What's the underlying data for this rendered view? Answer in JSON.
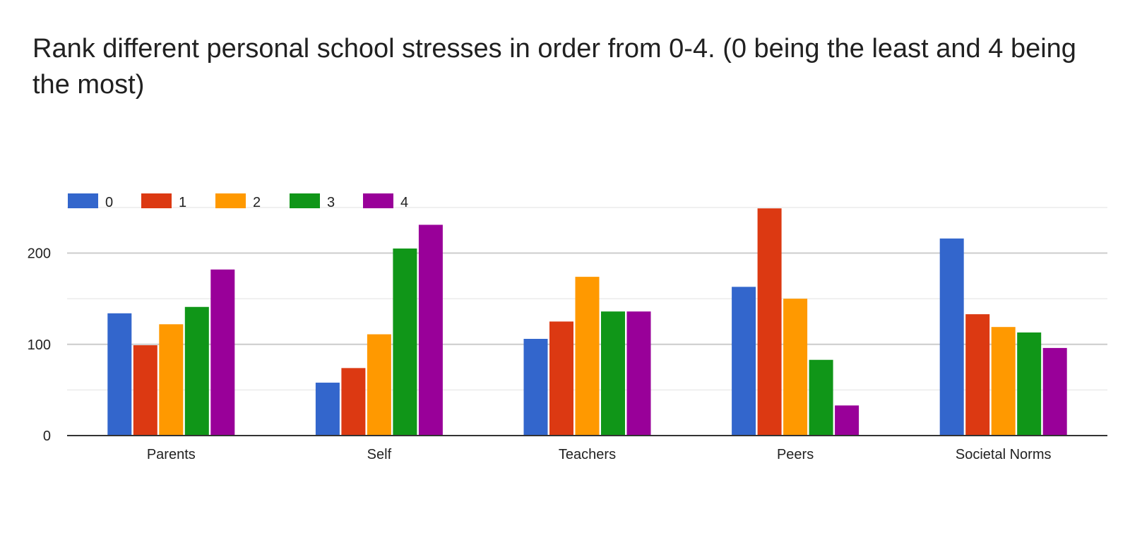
{
  "title": "Rank different personal school stresses in order from 0-4. (0 being the least and 4 being the most)",
  "colors": {
    "series": [
      "#3366cc",
      "#dc3912",
      "#ff9900",
      "#109618",
      "#990099"
    ],
    "gridline": "#cccccc",
    "minor_gridline": "#ebebeb",
    "baseline": "#333333"
  },
  "chart_data": {
    "type": "bar",
    "categories": [
      "Parents",
      "Self",
      "Teachers",
      "Peers",
      "Societal Norms"
    ],
    "series": [
      {
        "name": "0",
        "values": [
          134,
          58,
          106,
          163,
          216
        ]
      },
      {
        "name": "1",
        "values": [
          99,
          74,
          125,
          249,
          133
        ]
      },
      {
        "name": "2",
        "values": [
          122,
          111,
          174,
          150,
          119
        ]
      },
      {
        "name": "3",
        "values": [
          141,
          205,
          136,
          83,
          113
        ]
      },
      {
        "name": "4",
        "values": [
          182,
          231,
          136,
          33,
          96
        ]
      }
    ],
    "ylim": [
      0,
      250
    ],
    "yticks": [
      0,
      100,
      200
    ],
    "minor_gridlines": [
      50,
      150,
      250
    ],
    "grid": true,
    "legend": "top-left",
    "xlabel": "",
    "ylabel": ""
  }
}
